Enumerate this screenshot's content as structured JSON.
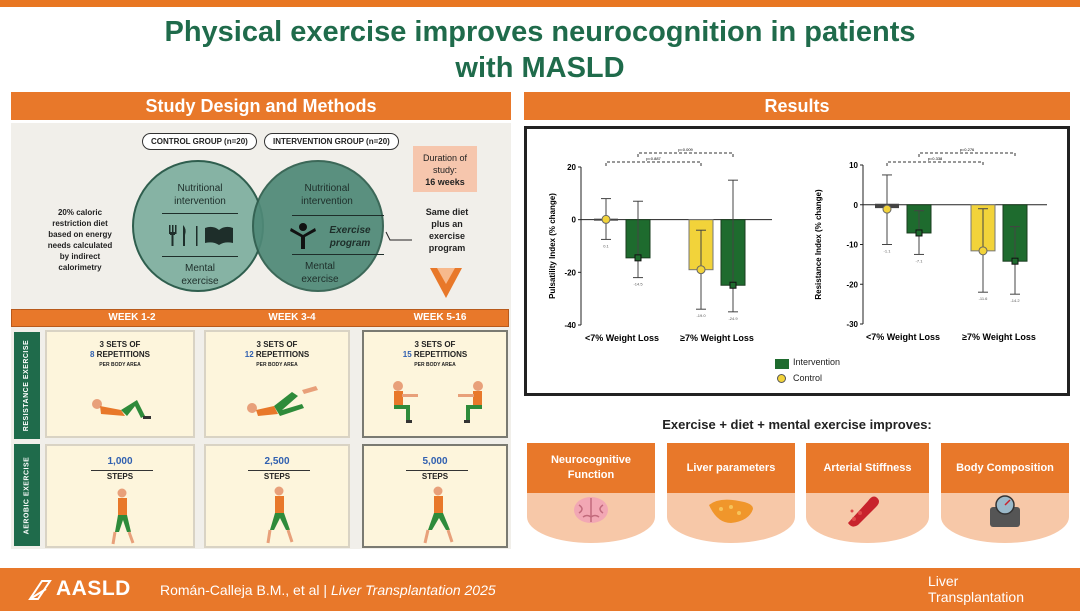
{
  "title": {
    "line1": "Physical exercise improves neurocognition in patients",
    "line2": "with MASLD"
  },
  "methods": {
    "heading": "Study Design and Methods",
    "control_label": "CONTROL GROUP (n=20)",
    "intervention_label": "INTERVENTION GROUP (n=20)",
    "diet_note": [
      "20% caloric",
      "restriction diet",
      "based on energy",
      "needs calculated",
      "by indirect",
      "calorimetry"
    ],
    "left_circle": {
      "top": [
        "Nutritional",
        "intervention"
      ],
      "bottom": [
        "Mental",
        "exercise"
      ]
    },
    "right_circle": {
      "top": [
        "Nutritional",
        "intervention"
      ],
      "middle": [
        "Exercise",
        "program"
      ],
      "bottom": [
        "Mental",
        "exercise"
      ]
    },
    "duration": {
      "line1": "Duration of",
      "line2": "study:",
      "line3": "16 weeks"
    },
    "same_diet": [
      "Same diet",
      "plus an",
      "exercise",
      "program"
    ],
    "weeks": [
      "WEEK 1-2",
      "WEEK 3-4",
      "WEEK 5-16"
    ],
    "resistance_tab": "RESISTANCE EXERCISE",
    "aerobic_tab": "AEROBIC EXERCISE",
    "resistance": [
      {
        "sets": "3 SETS OF",
        "reps_num": "8",
        "reps_word": "REPETITIONS",
        "per": "PER BODY AREA"
      },
      {
        "sets": "3 SETS OF",
        "reps_num": "12",
        "reps_word": "REPETITIONS",
        "per": "PER BODY AREA"
      },
      {
        "sets": "3 SETS OF",
        "reps_num": "15",
        "reps_word": "REPETITIONS",
        "per": "PER BODY AREA"
      }
    ],
    "aerobic": [
      {
        "count": "1,000",
        "label": "STEPS"
      },
      {
        "count": "2,500",
        "label": "STEPS"
      },
      {
        "count": "5,000",
        "label": "STEPS"
      }
    ]
  },
  "results": {
    "heading": "Results",
    "legend": [
      {
        "label": "Intervention",
        "color": "#1e6b2e"
      },
      {
        "label": "Control",
        "color": "#f2d33a"
      }
    ]
  },
  "chart_data": [
    {
      "type": "bar",
      "ylabel": "Pulsatility Index (% change)",
      "ylim": [
        -40,
        20
      ],
      "yticks": [
        20,
        0,
        -20,
        -40
      ],
      "groups": [
        "<7% Weight Loss",
        "≥7%  Weight Loss"
      ],
      "series": [
        {
          "name": "Control",
          "color": "#f2d33a",
          "values": [
            0.1,
            -19.0
          ],
          "err_low": [
            -7.5,
            -34.0
          ],
          "err_high": [
            8.0,
            -4.0
          ],
          "labels": [
            "0.1",
            "-19.0"
          ]
        },
        {
          "name": "Intervention",
          "color": "#1e6b2e",
          "values": [
            -14.5,
            -24.9
          ],
          "err_low": [
            -22.0,
            -35.0
          ],
          "err_high": [
            7.0,
            15.0
          ],
          "labels": [
            "-14.5",
            "-24.9"
          ]
        }
      ],
      "brackets": [
        {
          "label": "p=0.887"
        },
        {
          "label": "p=0.009"
        }
      ]
    },
    {
      "type": "bar",
      "ylabel": "Resistance Index (% change)",
      "ylim": [
        -30,
        10
      ],
      "yticks": [
        10,
        0,
        -10,
        -20,
        -30
      ],
      "groups": [
        "<7% Weight Loss",
        "≥7% Weight Loss"
      ],
      "series": [
        {
          "name": "Control",
          "color": "#f2d33a",
          "values": [
            -1.1,
            -11.6
          ],
          "err_low": [
            -10.0,
            -22.0
          ],
          "err_high": [
            7.5,
            -1.0
          ],
          "labels": [
            "-1.1",
            "-11.6"
          ]
        },
        {
          "name": "Intervention",
          "color": "#1e6b2e",
          "values": [
            -7.1,
            -14.2
          ],
          "err_low": [
            -12.5,
            -22.5
          ],
          "err_high": [
            -1.5,
            -5.5
          ],
          "labels": [
            "-7.1",
            "-14.2"
          ]
        }
      ],
      "brackets": [
        {
          "label": "p=0.338"
        },
        {
          "label": "p=0.276"
        }
      ]
    }
  ],
  "improves_text": "Exercise  + diet + mental exercise improves:",
  "tiles": [
    {
      "label": "Neurocognitive Function",
      "icon": "brain-icon"
    },
    {
      "label": "Liver parameters",
      "icon": "liver-icon"
    },
    {
      "label": "Arterial Stiffness",
      "icon": "artery-icon"
    },
    {
      "label": "Body Composition",
      "icon": "scale-icon"
    }
  ],
  "footer": {
    "org": "AASLD",
    "authors": "Román-Calleja B.M., et al",
    "separator": " | ",
    "journal": "Liver Transplantation 2025",
    "logo_line1": "Liver",
    "logo_line2": "Transplantation"
  }
}
